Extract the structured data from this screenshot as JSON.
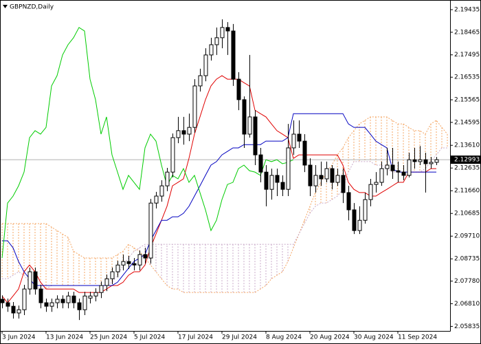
{
  "chart_data": {
    "type": "candlestick",
    "title": "GBPNZD,Daily",
    "categories": [
      "3 Jun 2024",
      null,
      null,
      null,
      null,
      null,
      null,
      null,
      "13 Jun 2024",
      null,
      null,
      null,
      null,
      null,
      null,
      null,
      "25 Jun 2024",
      null,
      null,
      null,
      null,
      null,
      null,
      null,
      "5 Jul 2024",
      null,
      null,
      null,
      null,
      null,
      null,
      null,
      "17 Jul 2024",
      null,
      null,
      null,
      null,
      null,
      null,
      null,
      "29 Jul 2024",
      null,
      null,
      null,
      null,
      null,
      null,
      null,
      "8 Aug 2024",
      null,
      null,
      null,
      null,
      null,
      null,
      null,
      "20 Aug 2024",
      null,
      null,
      null,
      null,
      null,
      null,
      null,
      "30 Aug 2024",
      null,
      null,
      null,
      null,
      null,
      null,
      null,
      "11 Sep 2024",
      null,
      null,
      null,
      null,
      null,
      null,
      null,
      null,
      null
    ],
    "open": [
      2.07,
      2.0685,
      2.067,
      2.0641,
      2.0655,
      2.0744,
      2.0818,
      2.0744,
      2.0685,
      2.067,
      2.0685,
      2.07,
      2.0685,
      2.0714,
      2.0685,
      2.0655,
      2.0705,
      2.0714,
      2.0729,
      2.0759,
      2.0788,
      2.0818,
      2.0847,
      2.0862,
      2.0853,
      2.0847,
      2.0892,
      2.0877,
      2.1113,
      2.1143,
      2.1187,
      2.1246,
      2.1394,
      2.1424,
      2.1409,
      2.1438,
      2.1616,
      2.166,
      2.1749,
      2.1793,
      2.1823,
      2.1867,
      2.1852,
      2.1645,
      2.1557,
      2.1409,
      2.1483,
      2.132,
      2.1246,
      2.1172,
      2.1232,
      2.1202,
      2.1172,
      2.135,
      2.1409,
      2.1379,
      2.1276,
      2.1187,
      2.1232,
      2.1217,
      2.1261,
      2.1202,
      2.1232,
      2.1158,
      2.1084,
      2.0995,
      2.1039,
      2.1128,
      2.1193,
      2.1202,
      2.1261,
      2.1276,
      2.1252,
      2.1246,
      2.1232,
      2.1299,
      2.1291,
      2.1299,
      2.1282,
      2.1288,
      null,
      null
    ],
    "high": [
      2.0717,
      2.0703,
      2.0688,
      2.0673,
      2.0762,
      2.0836,
      2.0836,
      2.0762,
      2.0703,
      2.0703,
      2.0717,
      2.0717,
      2.0732,
      2.0732,
      2.0703,
      2.0732,
      2.0732,
      2.0747,
      2.0776,
      2.0806,
      2.0836,
      2.0865,
      2.0892,
      2.0886,
      2.0877,
      2.0909,
      2.0921,
      2.1131,
      2.1161,
      2.1211,
      2.1264,
      2.1412,
      2.1483,
      2.1483,
      2.1497,
      2.1645,
      2.169,
      2.1778,
      2.1823,
      2.1867,
      2.1902,
      2.189,
      2.1882,
      2.1675,
      2.1571,
      2.1749,
      2.1512,
      2.135,
      2.1276,
      2.1261,
      2.1261,
      2.1232,
      2.1453,
      2.1468,
      2.1468,
      2.1409,
      2.1305,
      2.1276,
      2.1291,
      2.1291,
      2.1276,
      2.1261,
      2.1261,
      2.1187,
      2.1113,
      2.1099,
      2.1158,
      2.1217,
      2.1246,
      2.1291,
      2.135,
      2.135,
      2.1291,
      2.1276,
      2.1329,
      2.135,
      2.1358,
      2.1329,
      2.1311,
      2.1311,
      null,
      null
    ],
    "low": [
      2.0661,
      2.0646,
      2.0617,
      2.0617,
      2.0632,
      2.072,
      2.072,
      2.0661,
      2.0646,
      2.0646,
      2.0661,
      2.0661,
      2.0661,
      2.0661,
      2.0611,
      2.0632,
      2.0682,
      2.0691,
      2.0705,
      2.0735,
      2.0765,
      2.0794,
      2.0824,
      2.083,
      2.0824,
      2.0824,
      2.0853,
      2.0853,
      2.109,
      2.1119,
      2.1164,
      2.1223,
      2.137,
      2.1364,
      2.1379,
      2.1415,
      2.1592,
      2.1636,
      2.1725,
      2.1749,
      2.1778,
      2.1749,
      2.1616,
      2.1512,
      2.135,
      2.1394,
      2.1276,
      2.1202,
      2.1099,
      2.1128,
      2.1143,
      2.1143,
      2.1143,
      2.132,
      2.135,
      2.1246,
      2.1143,
      2.1158,
      2.1187,
      2.1202,
      2.1172,
      2.1187,
      2.1113,
      2.1039,
      2.098,
      2.098,
      2.1025,
      2.1099,
      2.1158,
      2.1187,
      2.1232,
      2.1217,
      2.1202,
      2.1211,
      2.1223,
      2.1261,
      2.1276,
      2.1158,
      2.1261,
      2.1276,
      null,
      null
    ],
    "close": [
      2.0685,
      2.067,
      2.0641,
      2.0655,
      2.0744,
      2.0818,
      2.0744,
      2.0685,
      2.067,
      2.0685,
      2.07,
      2.0685,
      2.0714,
      2.0685,
      2.0655,
      2.0714,
      2.0714,
      2.0729,
      2.0759,
      2.0788,
      2.0818,
      2.0847,
      2.0862,
      2.0853,
      2.0847,
      2.0892,
      2.0877,
      2.1113,
      2.1143,
      2.1187,
      2.1246,
      2.1394,
      2.1424,
      2.1409,
      2.1438,
      2.1616,
      2.166,
      2.1749,
      2.1793,
      2.1823,
      2.1867,
      2.1852,
      2.1645,
      2.1557,
      2.1409,
      2.1483,
      2.132,
      2.1246,
      2.1172,
      2.1232,
      2.1202,
      2.1172,
      2.135,
      2.1409,
      2.1379,
      2.1276,
      2.1187,
      2.1232,
      2.1217,
      2.1261,
      2.1202,
      2.1232,
      2.1158,
      2.1084,
      2.0995,
      2.1039,
      2.1128,
      2.1193,
      2.1202,
      2.1261,
      2.1276,
      2.1252,
      2.1246,
      2.1232,
      2.1299,
      2.1291,
      2.1299,
      2.1282,
      2.1288,
      2.12993,
      null,
      null
    ],
    "up_color": "#ffffff",
    "down_color": "#000000",
    "lines": [
      {
        "color": "#e00000",
        "values": [
          2.0714,
          2.0685,
          2.0714,
          2.0744,
          2.0818,
          2.0847,
          2.0818,
          2.0773,
          2.0744,
          2.0744,
          2.0744,
          2.0744,
          2.0744,
          2.0744,
          2.0729,
          2.0729,
          2.0729,
          2.0729,
          2.0729,
          2.0744,
          2.0759,
          2.0759,
          2.0773,
          2.0803,
          2.0818,
          2.0818,
          2.0847,
          2.0921,
          2.098,
          2.1039,
          2.1099,
          2.1187,
          2.1202,
          2.1217,
          2.1305,
          2.1409,
          2.1483,
          2.1557,
          2.1616,
          2.1645,
          2.166,
          2.1645,
          2.1645,
          2.1645,
          2.163,
          2.1616,
          2.1512,
          2.1497,
          2.1483,
          2.1453,
          2.1424,
          2.1409,
          2.1394,
          2.1305,
          2.132,
          2.132,
          2.132,
          2.132,
          2.132,
          2.132,
          2.132,
          2.132,
          2.1276,
          2.1202,
          2.1172,
          2.1158,
          2.1158,
          2.1143,
          2.1143,
          2.1158,
          2.1172,
          2.1187,
          2.1202,
          2.1202,
          2.1246,
          2.1246,
          2.1246,
          2.1246,
          2.1261,
          2.1261,
          null,
          null
        ]
      },
      {
        "color": "#0000c0",
        "values": [
          2.0951,
          2.0951,
          2.0921,
          2.0862,
          2.0818,
          2.0788,
          2.0759,
          2.0759,
          2.0759,
          2.0759,
          2.0759,
          2.0759,
          2.0759,
          2.0759,
          2.0759,
          2.0759,
          2.0759,
          2.0759,
          2.0759,
          2.0759,
          2.0759,
          2.0773,
          2.0803,
          2.0833,
          2.0862,
          2.0877,
          2.0892,
          2.0951,
          2.0995,
          2.1039,
          2.1039,
          2.1054,
          2.1054,
          2.1069,
          2.1099,
          2.1143,
          2.1187,
          2.1232,
          2.1276,
          2.1291,
          2.132,
          2.1335,
          2.135,
          2.135,
          2.1364,
          2.1364,
          2.1364,
          2.1364,
          2.1379,
          2.1379,
          2.1379,
          2.1379,
          2.1394,
          2.1497,
          2.1497,
          2.1497,
          2.1497,
          2.1497,
          2.1497,
          2.1497,
          2.1497,
          2.1497,
          2.1497,
          2.1453,
          2.1438,
          2.1438,
          2.1438,
          2.1409,
          2.1379,
          2.1364,
          2.135,
          2.1261,
          2.1246,
          2.1246,
          2.1246,
          2.1246,
          2.1246,
          2.1246,
          2.1246,
          2.1246,
          null,
          null
        ]
      },
      {
        "color": "#00cc00",
        "values": [
          2.0877,
          2.1113,
          2.1143,
          2.1187,
          2.1246,
          2.1394,
          2.1424,
          2.1409,
          2.1438,
          2.1616,
          2.166,
          2.1749,
          2.1793,
          2.1823,
          2.1867,
          2.1852,
          2.1645,
          2.1557,
          2.1409,
          2.1483,
          2.132,
          2.1246,
          2.1172,
          2.1232,
          2.1202,
          2.1172,
          2.135,
          2.1409,
          2.1379,
          2.1276,
          2.1187,
          2.1232,
          2.1217,
          2.1261,
          2.1202,
          2.1232,
          2.1158,
          2.1084,
          2.0995,
          2.1039,
          2.1128,
          2.1193,
          2.1202,
          2.1261,
          2.1276,
          2.1252,
          2.1246,
          2.1232,
          2.1299,
          2.1291,
          2.1299,
          2.1282,
          2.1288,
          2.12993,
          null,
          null,
          null,
          null,
          null,
          null,
          null,
          null,
          null,
          null,
          null,
          null,
          null,
          null,
          null,
          null,
          null,
          null,
          null,
          null,
          null,
          null,
          null,
          null,
          null,
          null,
          null,
          null
        ]
      }
    ],
    "cloud": {
      "up_color": "#f4a460",
      "down_color": "#c8a8c8",
      "span_a": [
        2.1025,
        2.1025,
        2.1025,
        2.1025,
        2.1025,
        2.1025,
        2.1025,
        2.1025,
        2.1025,
        2.101,
        2.0995,
        2.098,
        2.0966,
        2.0906,
        2.0892,
        2.0877,
        2.0877,
        2.0877,
        2.0877,
        2.0877,
        2.0877,
        2.0892,
        2.0906,
        2.0936,
        2.0921,
        2.0906,
        2.0877,
        2.0847,
        2.0818,
        2.0788,
        2.0759,
        2.0744,
        2.0744,
        2.0729,
        2.0729,
        2.0729,
        2.0729,
        2.0729,
        2.0729,
        2.0729,
        2.0729,
        2.0729,
        2.0729,
        2.0729,
        2.0729,
        2.0729,
        2.0729,
        2.0744,
        2.0759,
        2.0788,
        2.0803,
        2.0818,
        2.0862,
        2.0921,
        2.098,
        2.1039,
        2.1099,
        2.1158,
        2.1202,
        2.1246,
        2.1276,
        2.132,
        2.135,
        2.1394,
        2.1424,
        2.1453,
        2.1468,
        2.1483,
        2.1483,
        2.1483,
        2.1483,
        2.1468,
        2.1453,
        2.1453,
        2.1438,
        2.1424,
        2.1424,
        2.1409,
        2.1453,
        2.1468,
        2.1438,
        2.1409
      ],
      "span_b": [
        2.0788,
        2.0788,
        2.0803,
        2.0818,
        2.0803,
        2.0773,
        2.0759,
        2.0744,
        2.0744,
        2.0759,
        2.0759,
        2.0759,
        2.0759,
        2.0759,
        2.0759,
        2.0759,
        2.0759,
        2.0759,
        2.0759,
        2.0759,
        2.0773,
        2.0803,
        2.0847,
        2.0877,
        2.0906,
        2.0921,
        2.0936,
        2.0936,
        2.0936,
        2.0936,
        2.0936,
        2.0936,
        2.0936,
        2.0936,
        2.0936,
        2.0936,
        2.0936,
        2.0936,
        2.0936,
        2.0936,
        2.0936,
        2.0936,
        2.0936,
        2.0936,
        2.0936,
        2.0936,
        2.0936,
        2.0936,
        2.0936,
        2.0936,
        2.0936,
        2.0936,
        2.0936,
        2.0936,
        2.098,
        2.1025,
        2.1069,
        2.1099,
        2.1113,
        2.1113,
        2.1128,
        2.1143,
        2.1172,
        2.1246,
        2.1291,
        2.1291,
        2.1291,
        2.1291,
        2.1276,
        2.1276,
        2.1261,
        2.1246,
        2.1246,
        2.1246,
        2.1246,
        2.1246,
        2.1246,
        2.1261,
        2.1291,
        2.132,
        2.135,
        2.135
      ]
    },
    "ylim": [
      2.0564,
      2.1985
    ],
    "yticks": [
      2.19435,
      2.18465,
      2.17495,
      2.16535,
      2.15565,
      2.14595,
      {
        "value": 2.1361,
        "label": "2.13610"
      },
      2.12635,
      {
        "value": 2.1166,
        "label": "2.11660"
      },
      2.10685,
      {
        "value": 2.0971,
        "label": "2.09710"
      },
      2.08735,
      {
        "value": 2.0778,
        "label": "2.07780"
      },
      {
        "value": 2.0681,
        "label": "2.06810"
      },
      2.05835
    ],
    "current_price": 2.12993
  }
}
